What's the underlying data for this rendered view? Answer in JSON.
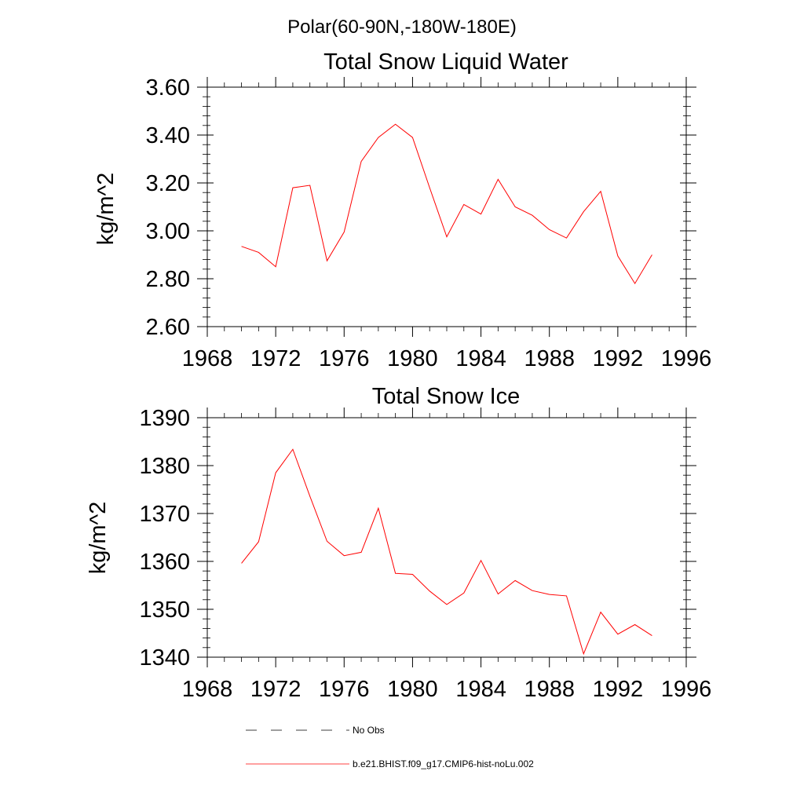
{
  "figure": {
    "main_title": "Polar(60-90N,-180W-180E)"
  },
  "legend": [
    {
      "label": "No Obs",
      "color": "#000000",
      "dashed": true
    },
    {
      "label": "b.e21.BHIST.f09_g17.CMIP6-hist-noLu.002",
      "color": "#ff0000",
      "dashed": false
    }
  ],
  "chart_data": [
    {
      "type": "line",
      "title": "Total Snow Liquid Water",
      "ylabel": "kg/m^2",
      "xlim": [
        1968,
        1996
      ],
      "ylim": [
        2.6,
        3.6
      ],
      "xticks": [
        1968,
        1972,
        1976,
        1980,
        1984,
        1988,
        1992,
        1996
      ],
      "xtick_labels": [
        "1968",
        "1972",
        "1976",
        "1980",
        "1984",
        "1988",
        "1992",
        "1996"
      ],
      "yticks": [
        2.6,
        2.8,
        3.0,
        3.2,
        3.4,
        3.6
      ],
      "ytick_labels": [
        "2.60",
        "2.80",
        "3.00",
        "3.20",
        "3.40",
        "3.60"
      ],
      "series": [
        {
          "name": "b.e21.BHIST.f09_g17.CMIP6-hist-noLu.002",
          "color": "#ff0000",
          "x": [
            1970,
            1971,
            1972,
            1973,
            1974,
            1975,
            1976,
            1977,
            1978,
            1979,
            1980,
            1981,
            1982,
            1983,
            1984,
            1985,
            1986,
            1987,
            1988,
            1989,
            1990,
            1991,
            1992,
            1993,
            1994
          ],
          "y": [
            2.935,
            2.91,
            2.85,
            3.18,
            3.19,
            2.875,
            2.995,
            3.29,
            3.39,
            3.445,
            3.39,
            3.18,
            2.975,
            3.11,
            3.07,
            3.215,
            3.1,
            3.065,
            3.005,
            2.97,
            3.08,
            3.165,
            2.895,
            2.78,
            2.9
          ]
        }
      ]
    },
    {
      "type": "line",
      "title": "Total Snow Ice",
      "ylabel": "kg/m^2",
      "xlim": [
        1968,
        1996
      ],
      "ylim": [
        1340,
        1390
      ],
      "xticks": [
        1968,
        1972,
        1976,
        1980,
        1984,
        1988,
        1992,
        1996
      ],
      "xtick_labels": [
        "1968",
        "1972",
        "1976",
        "1980",
        "1984",
        "1988",
        "1992",
        "1996"
      ],
      "yticks": [
        1340,
        1350,
        1360,
        1370,
        1380,
        1390
      ],
      "ytick_labels": [
        "1340",
        "1350",
        "1360",
        "1370",
        "1380",
        "1390"
      ],
      "series": [
        {
          "name": "b.e21.BHIST.f09_g17.CMIP6-hist-noLu.002",
          "color": "#ff0000",
          "x": [
            1970,
            1971,
            1972,
            1973,
            1974,
            1975,
            1976,
            1977,
            1978,
            1979,
            1980,
            1981,
            1982,
            1983,
            1984,
            1985,
            1986,
            1987,
            1988,
            1989,
            1990,
            1991,
            1992,
            1993,
            1994
          ],
          "y": [
            1359.6,
            1364.1,
            1378.5,
            1383.4,
            1373.6,
            1364.2,
            1361.2,
            1361.9,
            1371.1,
            1357.5,
            1357.3,
            1353.8,
            1351.0,
            1353.4,
            1360.2,
            1353.2,
            1356.0,
            1353.9,
            1353.1,
            1352.8,
            1340.7,
            1349.4,
            1344.8,
            1346.8,
            1344.5
          ]
        }
      ]
    }
  ]
}
